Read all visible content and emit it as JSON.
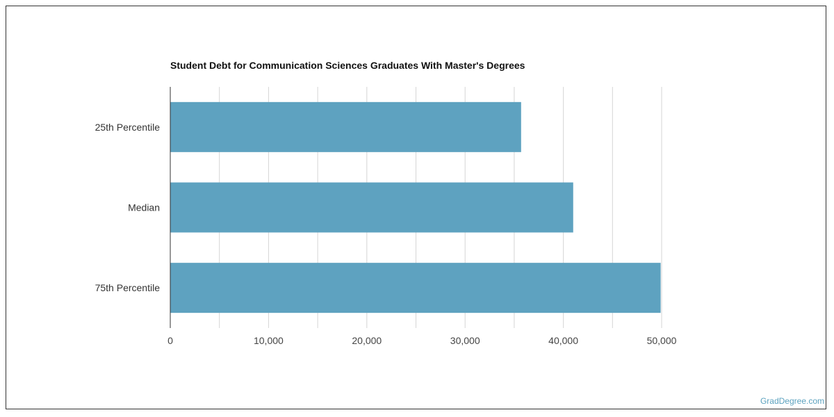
{
  "chart_data": {
    "type": "bar",
    "orientation": "horizontal",
    "title": "Student Debt for Communication Sciences Graduates With Master's Degrees",
    "categories": [
      "25th Percentile",
      "Median",
      "75th Percentile"
    ],
    "values": [
      35700,
      41000,
      49900
    ],
    "xlabel": "",
    "ylabel": "",
    "xlim": [
      0,
      50000
    ],
    "xticks": [
      0,
      10000,
      20000,
      30000,
      40000,
      50000
    ],
    "xtick_labels": [
      "0",
      "10,000",
      "20,000",
      "30,000",
      "40,000",
      "50,000"
    ],
    "grid": true,
    "bar_color": "#5ea2c0"
  },
  "credit": "GradDegree.com"
}
